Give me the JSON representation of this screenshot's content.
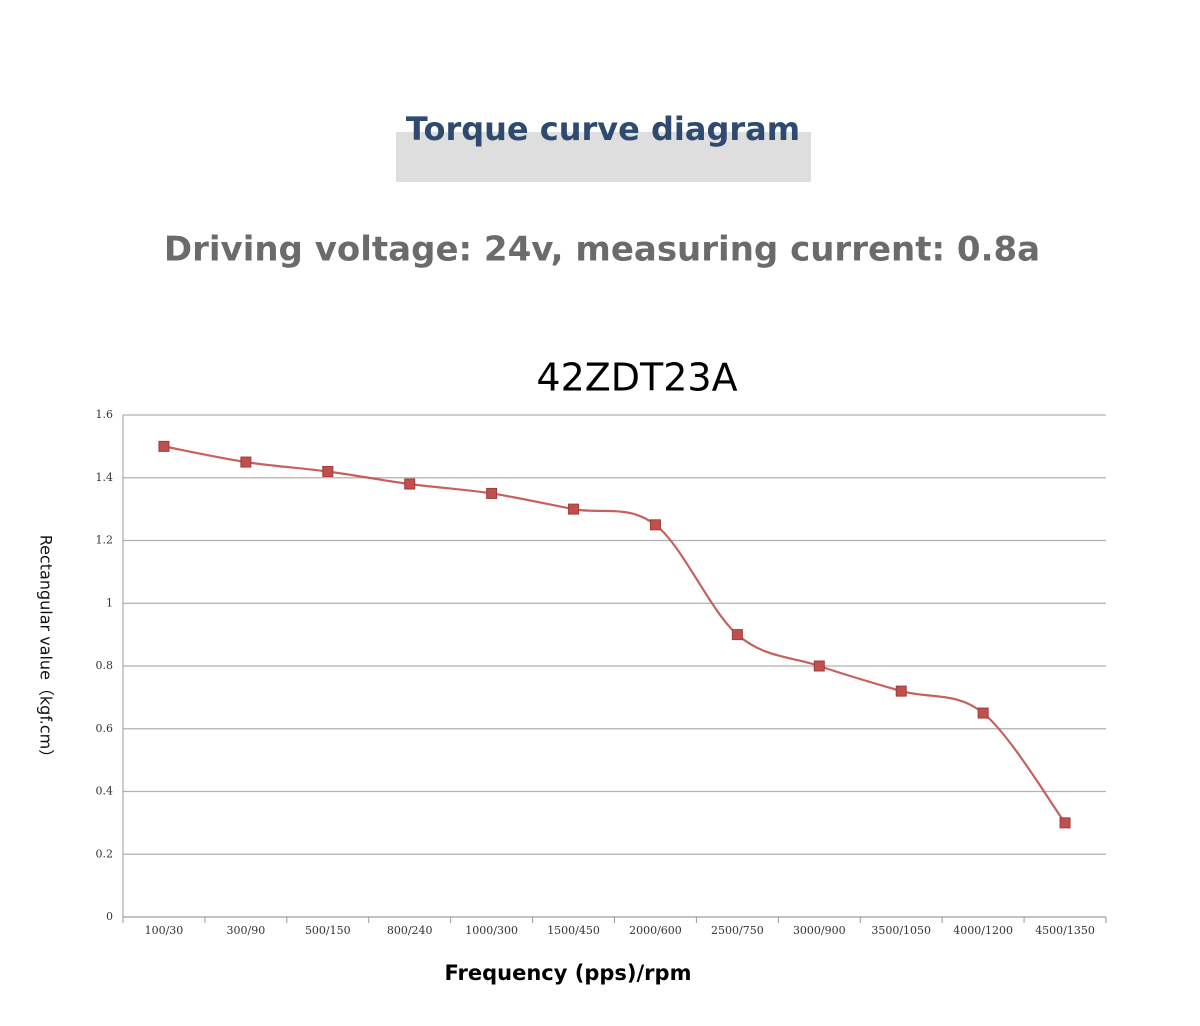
{
  "chart_data": {
    "type": "line",
    "header": "Torque curve diagram",
    "subtitle": "Driving voltage: 24v, measuring current: 0.8a",
    "title": "42ZDT23A",
    "y_label": "Rectangular value（kgf.cm）",
    "x_label": "Frequency (pps)/rpm",
    "categories": [
      "100/30",
      "300/90",
      "500/150",
      "800/240",
      "1000/300",
      "1500/450",
      "2000/600",
      "2500/750",
      "3000/900",
      "3500/1050",
      "4000/1200",
      "4500/1350"
    ],
    "series": [
      {
        "name": "42ZDT23A",
        "color": "#c0504d",
        "values": [
          1.5,
          1.45,
          1.42,
          1.38,
          1.35,
          1.3,
          1.25,
          0.9,
          0.8,
          0.72,
          0.65,
          0.3
        ]
      }
    ],
    "ylim": [
      0,
      1.6
    ],
    "yticks": [
      0,
      0.2,
      0.4,
      0.6,
      0.8,
      1,
      1.2,
      1.4,
      1.6
    ],
    "grid": true,
    "smooth": true
  }
}
